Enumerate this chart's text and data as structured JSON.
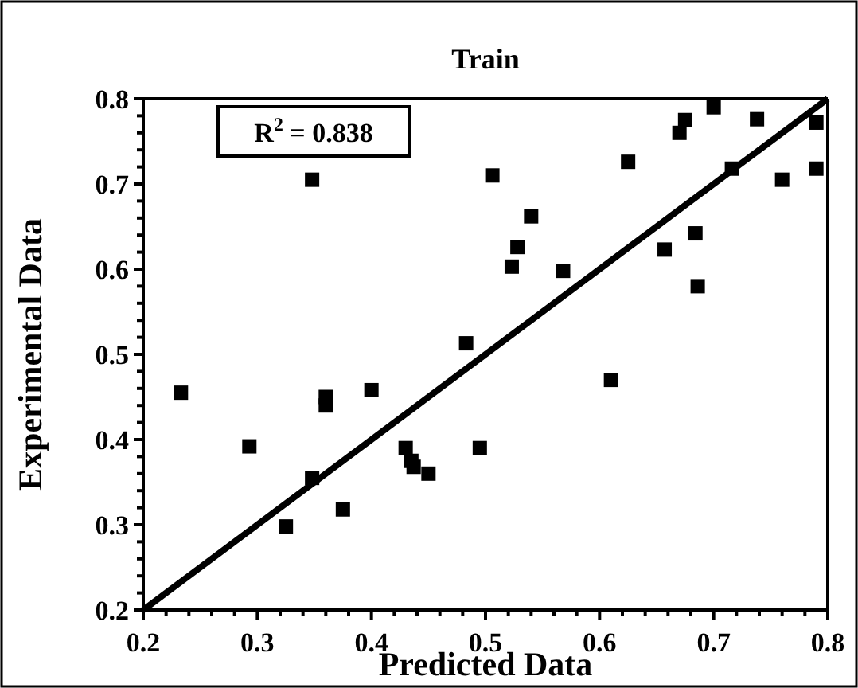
{
  "chart_data": {
    "type": "scatter",
    "title": "Train",
    "xlabel": "Predicted Data",
    "ylabel": "Experimental Data",
    "xlim": [
      0.2,
      0.8
    ],
    "ylim": [
      0.2,
      0.8
    ],
    "xticks": [
      0.2,
      {
        "value": 0.22,
        "label": null
      },
      {
        "value": 0.24,
        "label": null
      },
      {
        "value": 0.26,
        "label": null
      },
      {
        "value": 0.28,
        "label": null
      },
      0.3,
      {
        "value": 0.32,
        "label": null
      },
      {
        "value": 0.34,
        "label": null
      },
      {
        "value": 0.36,
        "label": null
      },
      {
        "value": 0.38,
        "label": null
      },
      0.4,
      {
        "value": 0.42,
        "label": null
      },
      {
        "value": 0.44,
        "label": null
      },
      {
        "value": 0.46,
        "label": null
      },
      {
        "value": 0.48,
        "label": null
      },
      0.5,
      {
        "value": 0.52,
        "label": null
      },
      {
        "value": 0.54,
        "label": null
      },
      {
        "value": 0.56,
        "label": null
      },
      {
        "value": 0.58,
        "label": null
      },
      0.6,
      {
        "value": 0.62,
        "label": null
      },
      {
        "value": 0.64,
        "label": null
      },
      {
        "value": 0.66,
        "label": null
      },
      {
        "value": 0.68,
        "label": null
      },
      0.7,
      {
        "value": 0.72,
        "label": null
      },
      {
        "value": 0.74,
        "label": null
      },
      {
        "value": 0.76,
        "label": null
      },
      {
        "value": 0.78,
        "label": null
      },
      0.8
    ],
    "yticks": [
      0.2,
      {
        "value": 0.22,
        "label": null
      },
      {
        "value": 0.24,
        "label": null
      },
      {
        "value": 0.26,
        "label": null
      },
      {
        "value": 0.28,
        "label": null
      },
      0.3,
      {
        "value": 0.32,
        "label": null
      },
      {
        "value": 0.34,
        "label": null
      },
      {
        "value": 0.36,
        "label": null
      },
      {
        "value": 0.38,
        "label": null
      },
      0.4,
      {
        "value": 0.42,
        "label": null
      },
      {
        "value": 0.44,
        "label": null
      },
      {
        "value": 0.46,
        "label": null
      },
      {
        "value": 0.48,
        "label": null
      },
      0.5,
      {
        "value": 0.52,
        "label": null
      },
      {
        "value": 0.54,
        "label": null
      },
      {
        "value": 0.56,
        "label": null
      },
      {
        "value": 0.58,
        "label": null
      },
      0.6,
      {
        "value": 0.62,
        "label": null
      },
      {
        "value": 0.64,
        "label": null
      },
      {
        "value": 0.66,
        "label": null
      },
      {
        "value": 0.68,
        "label": null
      },
      0.7,
      {
        "value": 0.72,
        "label": null
      },
      {
        "value": 0.74,
        "label": null
      },
      {
        "value": 0.76,
        "label": null
      },
      {
        "value": 0.78,
        "label": null
      },
      0.8
    ],
    "grid": false,
    "marker": "square",
    "annotations": [
      "R$^{2}$ = 0.838"
    ],
    "series": [
      {
        "color": "#000000",
        "x": [
          0.233,
          0.293,
          0.325,
          0.348,
          0.348,
          0.36,
          0.36,
          0.375,
          0.4,
          0.43,
          0.435,
          0.437,
          0.45,
          0.483,
          0.495,
          0.506,
          0.523,
          0.528,
          0.54,
          0.568,
          0.61,
          0.625,
          0.657,
          0.67,
          0.675,
          0.684,
          0.686,
          0.7,
          0.716,
          0.738,
          0.76,
          0.79,
          0.79
        ],
        "values": [
          0.455,
          0.392,
          0.298,
          0.355,
          0.705,
          0.45,
          0.44,
          0.318,
          0.458,
          0.39,
          0.375,
          0.368,
          0.36,
          0.513,
          0.39,
          0.71,
          0.603,
          0.626,
          0.662,
          0.598,
          0.47,
          0.726,
          0.623,
          0.76,
          0.775,
          0.642,
          0.58,
          0.79,
          0.718,
          0.776,
          0.705,
          0.772,
          0.718
        ]
      },
      {
        "type": "line",
        "color": "#000000",
        "marker": "none",
        "line_style": "solid",
        "x": [
          0.2,
          0.8
        ],
        "values": [
          0.2,
          0.8
        ]
      }
    ]
  }
}
